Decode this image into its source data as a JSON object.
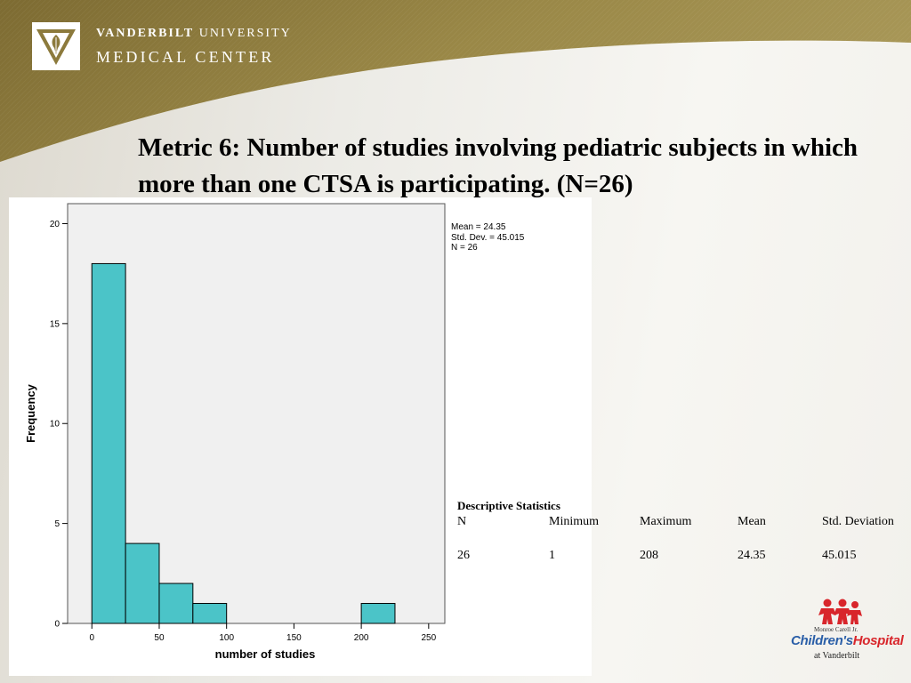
{
  "header": {
    "university_bold": "VANDERBILT",
    "university_rest": "UNIVERSITY",
    "medical_center": "MEDICAL CENTER"
  },
  "slide_title": "Metric 6: Number of studies involving pediatric subjects in which more than one CTSA is participating. (N=26)",
  "colors": {
    "banner_gold": "#8c7a3c",
    "bar_fill": "#4bc4c8",
    "bar_stroke": "#000000",
    "plot_background": "#f0f0f0"
  },
  "chart_data": {
    "type": "bar",
    "title": "",
    "xlabel": "number of studies",
    "ylabel": "Frequency",
    "bin_edges": [
      0,
      25,
      50,
      75,
      100,
      125,
      150,
      175,
      200,
      225
    ],
    "values": [
      18,
      4,
      2,
      1,
      0,
      0,
      0,
      0,
      1
    ],
    "xlim": [
      -18,
      262
    ],
    "ylim": [
      0,
      21
    ],
    "x_ticks": [
      0,
      50,
      100,
      150,
      200,
      250
    ],
    "y_ticks": [
      0,
      5,
      10,
      15,
      20
    ],
    "grid": false,
    "legend_lines": [
      "Mean = 24.35",
      "Std. Dev. = 45.015",
      "N = 26"
    ],
    "legend_position": "outside-top-right"
  },
  "descriptive_statistics": {
    "title": "Descriptive Statistics",
    "columns": [
      "N",
      "Minimum",
      "Maximum",
      "Mean",
      "Std. Deviation"
    ],
    "values": [
      "26",
      "1",
      "208",
      "24.35",
      "45.015"
    ]
  },
  "hospital_logo": {
    "small_text": "Monroe Carell Jr.",
    "name_part1": "Children's",
    "name_part2": "Hospital",
    "at_text": "at Vanderbilt"
  }
}
